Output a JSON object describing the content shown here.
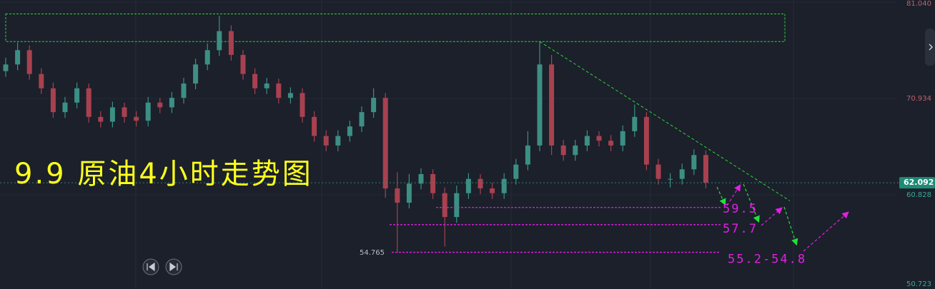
{
  "chart_data": {
    "type": "candlestick",
    "title": "9.9 原油4小时走势图",
    "open": [
      73.8,
      74.5,
      76.0,
      73.5,
      72.0,
      69.5,
      70.5,
      72.0,
      69.0,
      68.5,
      70.0,
      69.0,
      68.6,
      70.5,
      70.0,
      71.0,
      72.5,
      74.5,
      76.0,
      78.0,
      75.5,
      73.5,
      72.0,
      72.5,
      71.0,
      71.5,
      69.0,
      67.0,
      66.0,
      67.0,
      68.0,
      69.5,
      71.0,
      61.5,
      60.0,
      62.0,
      63.0,
      61.0,
      58.5,
      61.0,
      62.5,
      61.5,
      61.0,
      62.5,
      64.0,
      66.0,
      74.5,
      66.0,
      65.0,
      66.0,
      67.0,
      66.5,
      66.0,
      67.5,
      69.0,
      64.0,
      62.5,
      62.5,
      63.5,
      65.0
    ],
    "high": [
      75.2,
      76.8,
      76.5,
      74.1,
      72.6,
      71.1,
      72.6,
      72.5,
      69.6,
      70.6,
      70.5,
      69.6,
      71.1,
      71.0,
      71.6,
      73.1,
      75.1,
      76.7,
      79.6,
      78.6,
      76.0,
      74.1,
      73.1,
      73.0,
      72.1,
      72.0,
      69.6,
      67.6,
      67.6,
      68.6,
      70.1,
      72.0,
      71.5,
      63.2,
      63.0,
      63.6,
      63.5,
      61.6,
      61.8,
      63.1,
      63.0,
      62.1,
      63.1,
      64.6,
      67.5,
      76.9,
      75.5,
      66.6,
      66.6,
      67.6,
      67.5,
      67.1,
      68.1,
      70.3,
      69.5,
      64.6,
      63.1,
      64.1,
      65.6,
      65.5
    ],
    "low": [
      73.2,
      73.9,
      72.9,
      71.4,
      68.9,
      68.9,
      69.9,
      68.4,
      67.9,
      67.9,
      68.4,
      68.0,
      68.0,
      69.4,
      69.4,
      70.4,
      71.9,
      73.9,
      75.4,
      74.9,
      72.9,
      71.4,
      71.4,
      70.4,
      70.4,
      68.4,
      66.4,
      65.4,
      65.4,
      66.4,
      67.4,
      68.9,
      60.5,
      54.765,
      59.4,
      61.4,
      60.4,
      55.4,
      57.9,
      60.4,
      60.9,
      60.4,
      60.4,
      61.9,
      63.4,
      65.4,
      65.0,
      64.4,
      64.4,
      65.4,
      65.9,
      65.4,
      65.4,
      66.9,
      63.4,
      61.9,
      61.6,
      61.9,
      62.9,
      61.5
    ],
    "close": [
      74.5,
      76.0,
      73.5,
      72.0,
      69.5,
      70.5,
      72.0,
      69.0,
      68.5,
      70.0,
      69.0,
      68.6,
      70.5,
      70.0,
      71.0,
      72.5,
      74.5,
      76.0,
      78.0,
      75.5,
      73.5,
      72.0,
      72.5,
      71.0,
      71.5,
      69.0,
      67.0,
      66.0,
      67.0,
      68.0,
      69.5,
      71.0,
      61.5,
      60.0,
      62.0,
      63.0,
      61.0,
      58.5,
      61.0,
      62.5,
      61.5,
      61.0,
      62.5,
      64.0,
      66.0,
      74.5,
      66.0,
      65.0,
      66.0,
      67.0,
      66.5,
      66.0,
      67.5,
      69.0,
      64.0,
      62.5,
      62.5,
      63.5,
      65.0,
      62.1
    ],
    "up_color": "#3c8f84",
    "down_color": "#a8414f",
    "ylim": [
      50.95,
      81.26
    ],
    "yticks": [
      {
        "value": 81.04,
        "label": "81.040"
      },
      {
        "value": 70.934,
        "label": "70.934"
      },
      {
        "value": 60.828,
        "label": "60.828"
      },
      {
        "value": 50.723,
        "label": "50.723"
      }
    ],
    "last_price": {
      "value": 62.092,
      "label": "62.092"
    },
    "low_label": {
      "value": 54.765,
      "label": "54.765"
    },
    "resistance_zone": [
      76.9,
      79.8
    ],
    "trendline": [
      76.9,
      60.2
    ],
    "levels": [
      {
        "value": 59.5,
        "label": "59.5"
      },
      {
        "value": 57.7,
        "label": "57.7"
      },
      {
        "value": 54.8,
        "label": "55.2-54.8"
      }
    ]
  }
}
